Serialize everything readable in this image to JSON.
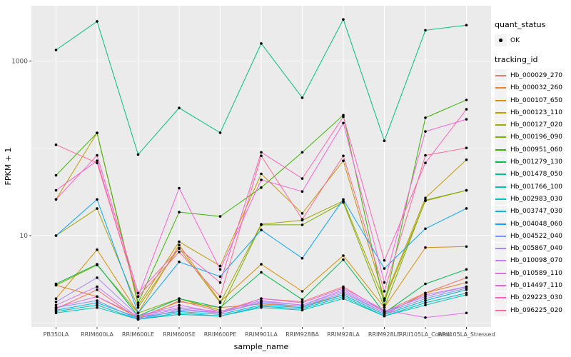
{
  "chart_data": {
    "type": "line",
    "xlabel": "sample_name",
    "ylabel": "FPKM + 1",
    "y_scale": "log10",
    "ylim": [
      1,
      4500
    ],
    "y_ticks": [
      10,
      1000
    ],
    "y_tick_labels": [
      "10",
      "1000"
    ],
    "y_minor_gridlines": [
      1,
      100
    ],
    "grid": true,
    "panel_bg": "#EBEBEB",
    "grid_color": "#FFFFFF",
    "tick_label_color": "#4D4D4D",
    "point_color": "#000000",
    "legend_position": "right",
    "categories": [
      "PB350LA",
      "RRIM600LA",
      "RRIM600LE",
      "RRIM600SE",
      "RRIM600PE",
      "RRIM901LA",
      "RRIM928BA",
      "RRIM928LA",
      "RRIM928LE",
      "RRII105LA_Control",
      "RRII105LA_Stressed"
    ],
    "series": [
      {
        "name": "Hb_000029_270",
        "color": "#F8766D",
        "values": [
          1.45,
          2.4,
          1.1,
          1.8,
          1.35,
          1.9,
          1.75,
          2.6,
          1.35,
          2.2,
          3.3
        ]
      },
      {
        "name": "Hb_000032_260",
        "color": "#EA8331",
        "values": [
          2.7,
          2.0,
          1.15,
          1.75,
          1.5,
          1.65,
          1.55,
          2.1,
          1.25,
          2.2,
          2.9
        ]
      },
      {
        "name": "Hb_000107_650",
        "color": "#D89000",
        "values": [
          1.9,
          6.9,
          1.3,
          7.8,
          1.75,
          4.7,
          2.3,
          5.9,
          1.5,
          7.3,
          7.5
        ]
      },
      {
        "name": "Hb_000123_110",
        "color": "#C09B00",
        "values": [
          26,
          150,
          1.6,
          8.5,
          4.5,
          51,
          18,
          72,
          1.9,
          27,
          74
        ]
      },
      {
        "name": "Hb_000127_020",
        "color": "#A3A500",
        "values": [
          10,
          20.4,
          1.5,
          7.2,
          1.7,
          13.5,
          15,
          25,
          1.8,
          25,
          33
        ]
      },
      {
        "name": "Hb_000196_090",
        "color": "#7CAE00",
        "values": [
          2.7,
          4.6,
          1.3,
          1.9,
          1.4,
          13.3,
          13.3,
          24,
          1.5,
          25.5,
          33
        ]
      },
      {
        "name": "Hb_000951_060",
        "color": "#39B600",
        "values": [
          49,
          150,
          1.7,
          18.6,
          16.6,
          35.5,
          90,
          240,
          1.6,
          224,
          358
        ]
      },
      {
        "name": "Hb_001279_130",
        "color": "#00BB4E",
        "values": [
          2.8,
          4.7,
          1.2,
          1.9,
          1.5,
          3.8,
          1.85,
          5.3,
          1.3,
          2.8,
          4.1
        ]
      },
      {
        "name": "Hb_001478_050",
        "color": "#00C087",
        "values": [
          1340,
          2850,
          85,
          290,
          151,
          1590,
          380,
          3000,
          122,
          2250,
          2580
        ]
      },
      {
        "name": "Hb_001766_100",
        "color": "#00C0B4",
        "values": [
          1.3,
          1.5,
          1.1,
          1.25,
          1.2,
          1.5,
          1.4,
          1.9,
          1.2,
          1.6,
          2.1
        ]
      },
      {
        "name": "Hb_002983_030",
        "color": "#00BDD2",
        "values": [
          1.35,
          1.6,
          1.1,
          1.3,
          1.2,
          1.55,
          1.45,
          2.0,
          1.2,
          1.7,
          2.2
        ]
      },
      {
        "name": "Hb_003747_030",
        "color": "#00B7E9",
        "values": [
          1.4,
          1.7,
          1.15,
          1.35,
          1.25,
          1.6,
          1.5,
          2.1,
          1.25,
          1.8,
          2.4
        ]
      },
      {
        "name": "Hb_004048_060",
        "color": "#06A5FF",
        "values": [
          10,
          26,
          1.3,
          5.0,
          3.4,
          11.6,
          5.5,
          26,
          4.2,
          12,
          20.5
        ]
      },
      {
        "name": "Hb_004522_040",
        "color": "#7997FF",
        "values": [
          1.5,
          1.8,
          1.1,
          1.4,
          1.3,
          1.7,
          1.55,
          2.2,
          1.3,
          1.9,
          2.5
        ]
      },
      {
        "name": "Hb_005867_040",
        "color": "#AC88FF",
        "values": [
          1.74,
          3.3,
          1.2,
          1.5,
          1.35,
          1.8,
          1.6,
          2.4,
          1.35,
          2.0,
          2.6
        ]
      },
      {
        "name": "Hb_010098_070",
        "color": "#CD79FF",
        "values": [
          1.6,
          2.6,
          1.15,
          1.45,
          1.3,
          1.75,
          1.6,
          2.3,
          1.3,
          2.1,
          2.6
        ]
      },
      {
        "name": "Hb_010589_110",
        "color": "#E869F0",
        "values": [
          1.5,
          2.0,
          1.2,
          1.6,
          1.3,
          1.9,
          1.7,
          2.5,
          1.4,
          1.15,
          1.3
        ]
      },
      {
        "name": "Hb_014497_110",
        "color": "#FA61D7",
        "values": [
          33,
          72,
          2.0,
          35,
          4.1,
          43.5,
          32,
          195,
          2.9,
          156,
          215
        ]
      },
      {
        "name": "Hb_029223_030",
        "color": "#FF62BC",
        "values": [
          26,
          83,
          2.2,
          7.1,
          2.9,
          90,
          45,
          230,
          5.2,
          68,
          280
        ]
      },
      {
        "name": "Hb_096225_020",
        "color": "#FF6A98",
        "values": [
          110,
          68,
          2.0,
          6.5,
          2.0,
          82,
          15.4,
          82,
          2.3,
          83,
          101
        ]
      }
    ],
    "legend": {
      "quant_status": {
        "title": "quant_status",
        "items": [
          {
            "label": "OK"
          }
        ]
      },
      "tracking_id": {
        "title": "tracking_id"
      }
    }
  }
}
